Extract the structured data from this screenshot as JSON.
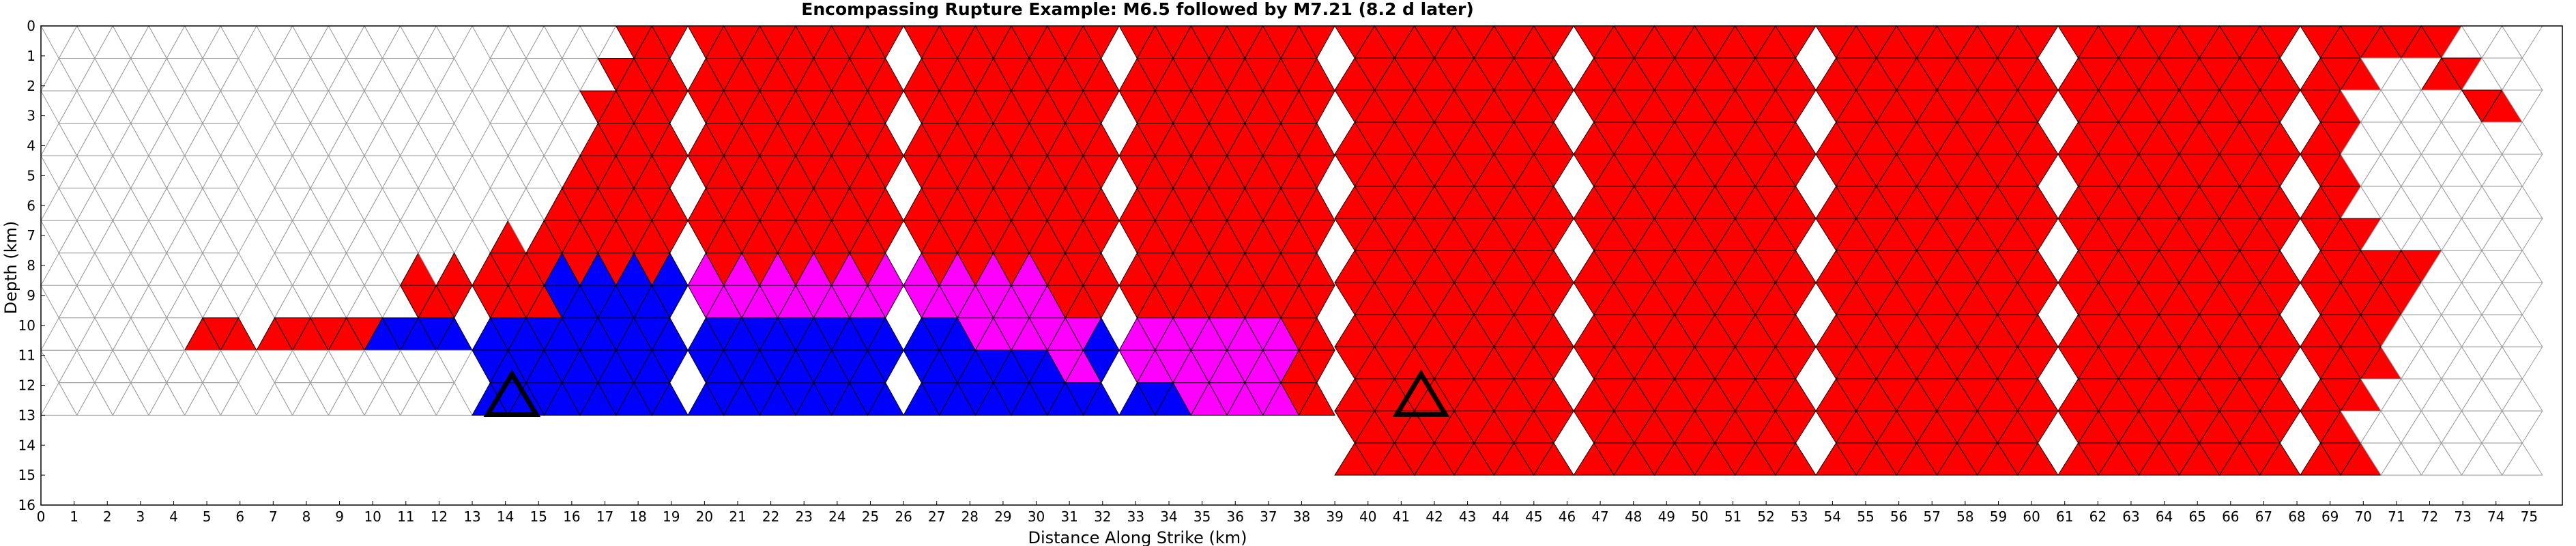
{
  "chart_data": {
    "type": "triangular-mesh-rupture-map",
    "title": "Encompassing Rupture Example: M6.5 followed by M7.21 (8.2 d later)",
    "xlabel": "Distance Along Strike (km)",
    "ylabel": "Depth (km)",
    "xlim": [
      0,
      76
    ],
    "ylim": [
      16,
      0
    ],
    "x_ticks": [
      0,
      1,
      2,
      3,
      4,
      5,
      6,
      7,
      8,
      9,
      10,
      11,
      12,
      13,
      14,
      15,
      16,
      17,
      18,
      19,
      20,
      21,
      22,
      23,
      24,
      25,
      26,
      27,
      28,
      29,
      30,
      31,
      32,
      33,
      34,
      35,
      36,
      37,
      38,
      39,
      40,
      41,
      42,
      43,
      44,
      45,
      46,
      47,
      48,
      49,
      50,
      51,
      52,
      53,
      54,
      55,
      56,
      57,
      58,
      59,
      60,
      61,
      62,
      63,
      64,
      65,
      66,
      67,
      68,
      69,
      70,
      71,
      72,
      73,
      74,
      75
    ],
    "y_ticks": [
      0,
      1,
      2,
      3,
      4,
      5,
      6,
      7,
      8,
      9,
      10,
      11,
      12,
      13,
      14,
      15,
      16
    ],
    "grid": false,
    "colors": {
      "outline": "#9a9a9a",
      "first_event": "#0000ff",
      "second_event": "#ff0000",
      "overlap": "#ff00ff",
      "hypocenter": "#000000",
      "unruptured": "#ffffff"
    },
    "segments": [
      {
        "x": [
          0,
          6.5
        ],
        "depth": [
          0,
          13
        ]
      },
      {
        "x": [
          6.5,
          13
        ],
        "depth": [
          0,
          13
        ]
      },
      {
        "x": [
          13,
          19.5
        ],
        "depth": [
          0,
          13
        ]
      },
      {
        "x": [
          19.5,
          26
        ],
        "depth": [
          0,
          13
        ]
      },
      {
        "x": [
          26,
          32.5
        ],
        "depth": [
          0,
          13
        ]
      },
      {
        "x": [
          32.5,
          39
        ],
        "depth": [
          0,
          13
        ]
      },
      {
        "x": [
          39,
          46.2
        ],
        "depth": [
          0,
          15
        ]
      },
      {
        "x": [
          46.2,
          53.5
        ],
        "depth": [
          0,
          15
        ]
      },
      {
        "x": [
          53.5,
          60.8
        ],
        "depth": [
          0,
          15
        ]
      },
      {
        "x": [
          60.8,
          68.1
        ],
        "depth": [
          0,
          15
        ]
      },
      {
        "x": [
          68.1,
          75.4
        ],
        "depth": [
          0,
          15
        ]
      }
    ],
    "hypocenters": [
      {
        "event": "M6.5",
        "x": 14.2,
        "depth": 12.4
      },
      {
        "event": "M7.21",
        "x": 41.6,
        "depth": 12.4
      }
    ]
  }
}
